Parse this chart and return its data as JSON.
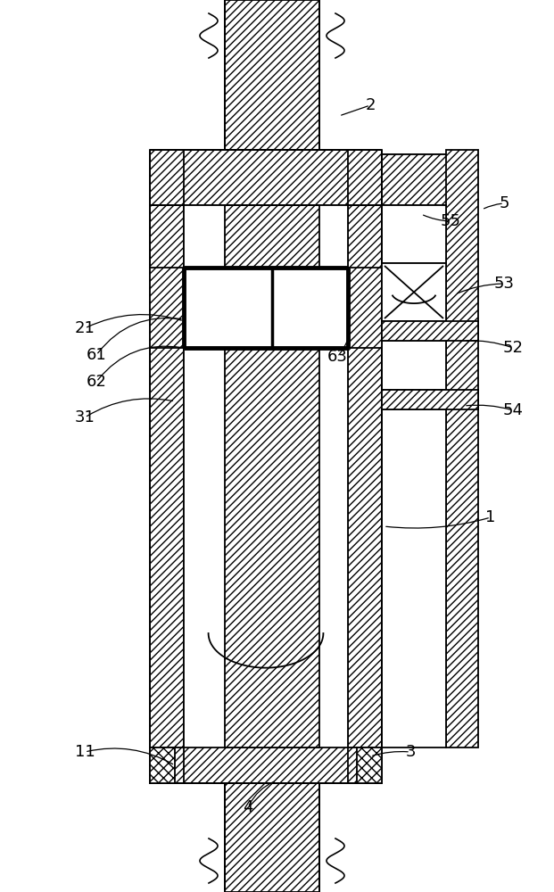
{
  "bg_color": "#ffffff",
  "line_color": "#000000",
  "figsize": [
    6.21,
    10.0
  ],
  "dpi": 100,
  "lw": 1.3,
  "hatch": "////"
}
